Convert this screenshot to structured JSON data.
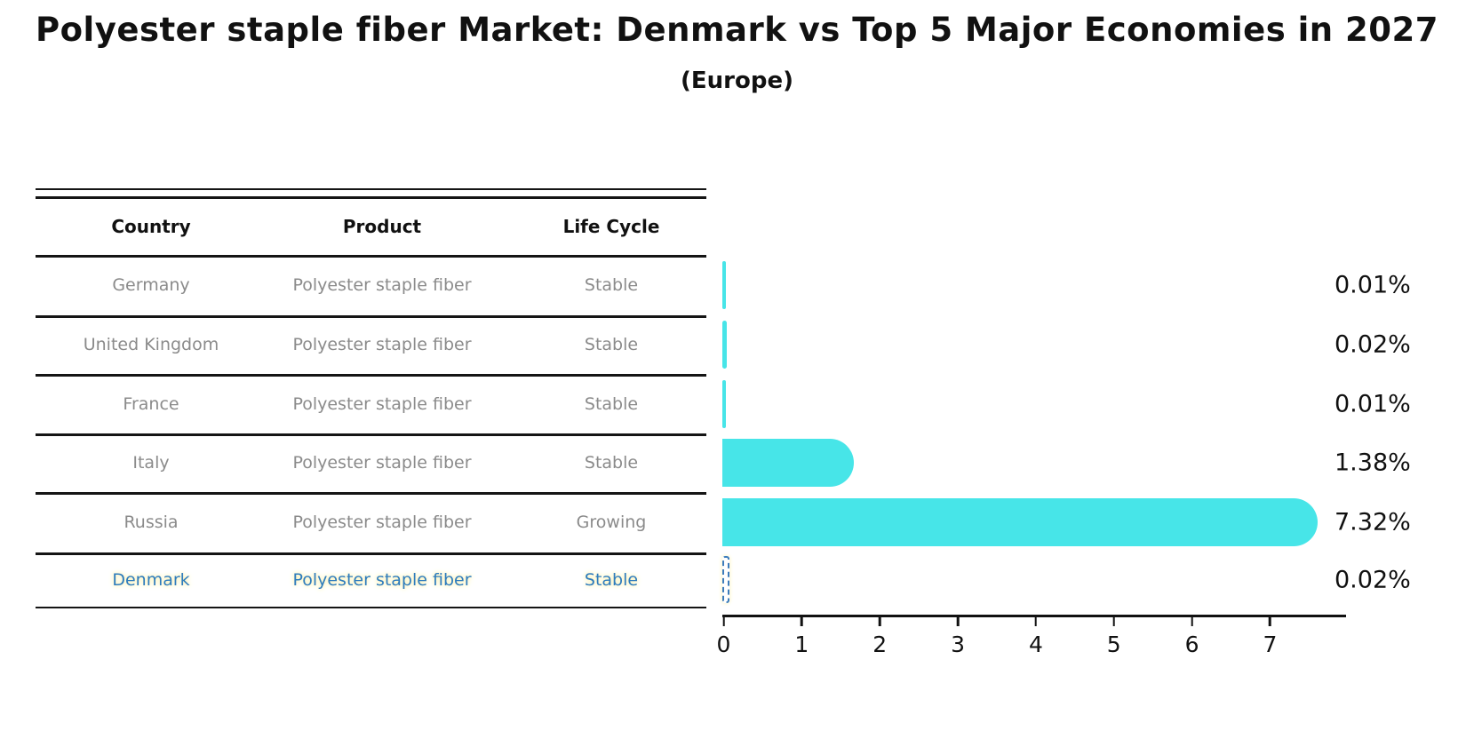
{
  "title": "Polyester staple fiber Market: Denmark vs Top 5 Major Economies in 2027",
  "subtitle": "(Europe)",
  "table": {
    "headers": [
      "Country",
      "Product",
      "Life Cycle"
    ],
    "rows": [
      {
        "country": "Germany",
        "product": "Polyester staple fiber",
        "life_cycle": "Stable",
        "share_label": "0.01%",
        "highlight": false
      },
      {
        "country": "United Kingdom",
        "product": "Polyester staple fiber",
        "life_cycle": "Stable",
        "share_label": "0.02%",
        "highlight": false
      },
      {
        "country": "France",
        "product": "Polyester staple fiber",
        "life_cycle": "Stable",
        "share_label": "0.01%",
        "highlight": false
      },
      {
        "country": "Italy",
        "product": "Polyester staple fiber",
        "life_cycle": "Stable",
        "share_label": "1.38%",
        "highlight": false
      },
      {
        "country": "Russia",
        "product": "Polyester staple fiber",
        "life_cycle": "Growing",
        "share_label": "7.32%",
        "highlight": false
      },
      {
        "country": "Denmark",
        "product": "Polyester staple fiber",
        "life_cycle": "Stable",
        "share_label": "0.02%",
        "highlight": true
      }
    ]
  },
  "chart_data": {
    "type": "bar",
    "orientation": "horizontal",
    "title": "Polyester staple fiber Market: Denmark vs Top 5 Major Economies in 2027",
    "subtitle": "(Europe)",
    "categories": [
      "Germany",
      "United Kingdom",
      "France",
      "Italy",
      "Russia",
      "Denmark"
    ],
    "values": [
      0.01,
      0.02,
      0.01,
      1.38,
      7.32,
      0.02
    ],
    "value_labels": [
      "0.01%",
      "0.02%",
      "0.01%",
      "1.38%",
      "7.32%",
      "0.02%"
    ],
    "x_ticks": [
      0,
      1,
      2,
      3,
      4,
      5,
      6,
      7
    ],
    "xlim": [
      0,
      7.95
    ],
    "grid": false,
    "legend": "none",
    "bar_color": "#47e5e8",
    "highlight": {
      "category": "Denmark",
      "style": "dashed-outline-unfilled",
      "border_color": "#3c7cbb"
    }
  },
  "colors": {
    "bar": "#47e5e8",
    "highlight_border": "#3c7cbb",
    "highlight_text": "#2e7cbd",
    "table_text": "#8b8b8b",
    "rule": "#151515",
    "label_text": "#101010"
  }
}
